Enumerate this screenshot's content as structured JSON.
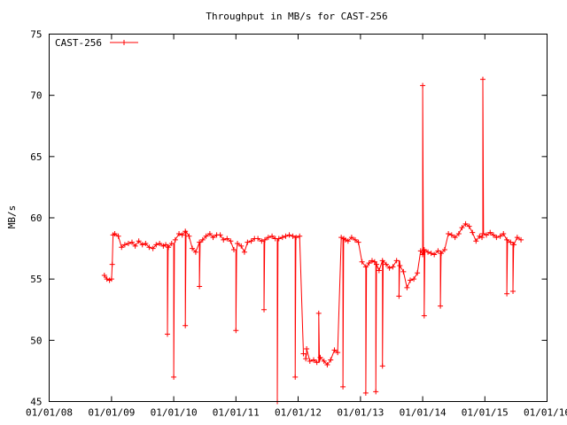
{
  "chart_data": {
    "type": "line",
    "title": "Throughput in MB/s for CAST-256",
    "xlabel": "",
    "ylabel": "MB/s",
    "ylim": [
      45,
      75
    ],
    "xlim": [
      "2008-01-01",
      "2016-01-01"
    ],
    "yticks": [
      "45",
      "50",
      "55",
      "60",
      "65",
      "70",
      "75"
    ],
    "xticks": [
      "01/01/08",
      "01/01/09",
      "01/01/10",
      "01/01/11",
      "01/01/12",
      "01/01/13",
      "01/01/14",
      "01/01/15",
      "01/01/16"
    ],
    "grid": false,
    "legend": "top-left",
    "series": [
      {
        "name": "CAST-256",
        "color": "#ff0000",
        "marker": "plus",
        "x": [
          "2008-11-20",
          "2008-12-05",
          "2008-12-20",
          "2009-01-01",
          "2009-01-05",
          "2009-01-10",
          "2009-01-20",
          "2009-02-10",
          "2009-03-01",
          "2009-03-20",
          "2009-04-10",
          "2009-05-01",
          "2009-05-20",
          "2009-06-10",
          "2009-07-01",
          "2009-07-20",
          "2009-08-10",
          "2009-09-01",
          "2009-09-20",
          "2009-10-10",
          "2009-11-01",
          "2009-11-15",
          "2009-12-01",
          "2009-12-20",
          "2010-01-10",
          "2010-02-01",
          "2010-02-20",
          "2010-03-10",
          "2010-04-01",
          "2010-04-20",
          "2010-05-10",
          "2010-06-01",
          "2010-06-20",
          "2010-07-10",
          "2010-08-01",
          "2010-08-20",
          "2010-09-10",
          "2010-10-01",
          "2010-10-20",
          "2010-11-10",
          "2010-12-01",
          "2010-12-20",
          "2011-01-10",
          "2011-02-01",
          "2011-02-20",
          "2011-03-10",
          "2011-04-01",
          "2011-04-20",
          "2011-05-10",
          "2011-06-01",
          "2011-06-20",
          "2011-07-10",
          "2011-08-01",
          "2011-08-20",
          "2011-09-10",
          "2011-10-01",
          "2011-10-20",
          "2011-11-10",
          "2011-12-01",
          "2011-12-20",
          "2012-01-10",
          "2012-02-01",
          "2012-02-20",
          "2012-03-10",
          "2012-04-01",
          "2012-04-20",
          "2012-05-10",
          "2012-06-01",
          "2012-06-20",
          "2012-07-10",
          "2012-08-01",
          "2012-08-20",
          "2012-09-10",
          "2012-09-25",
          "2012-10-05",
          "2012-10-20",
          "2012-11-10",
          "2012-12-01",
          "2012-12-20",
          "2013-01-10",
          "2013-02-01",
          "2013-02-20",
          "2013-03-10",
          "2013-03-25",
          "2013-04-05",
          "2013-04-20",
          "2013-05-10",
          "2013-06-01",
          "2013-06-20",
          "2013-07-10",
          "2013-08-01",
          "2013-08-20",
          "2013-09-10",
          "2013-10-01",
          "2013-10-20",
          "2013-11-10",
          "2013-12-01",
          "2013-12-20",
          "2014-01-01",
          "2014-01-10",
          "2014-02-01",
          "2014-02-20",
          "2014-03-10",
          "2014-04-01",
          "2014-04-20",
          "2014-05-10",
          "2014-06-01",
          "2014-06-20",
          "2014-07-10",
          "2014-08-01",
          "2014-08-20",
          "2014-09-10",
          "2014-10-01",
          "2014-10-20",
          "2014-11-10",
          "2014-12-01",
          "2014-12-15",
          "2014-12-20",
          "2015-01-10",
          "2015-02-01",
          "2015-02-20",
          "2015-03-10",
          "2015-04-01",
          "2015-04-20",
          "2015-05-10",
          "2015-06-01",
          "2015-06-20",
          "2015-07-10",
          "2015-08-01"
        ],
        "y": [
          55.3,
          55.0,
          54.9,
          55.0,
          56.2,
          58.6,
          58.7,
          58.5,
          57.6,
          57.8,
          57.9,
          58.0,
          57.7,
          58.1,
          57.8,
          57.9,
          57.6,
          57.5,
          57.8,
          57.9,
          57.7,
          57.8,
          57.6,
          57.9,
          58.2,
          58.7,
          58.6,
          58.9,
          58.5,
          57.5,
          57.2,
          58.0,
          58.2,
          58.5,
          58.7,
          58.4,
          58.6,
          58.6,
          58.2,
          58.3,
          58.1,
          57.4,
          57.9,
          57.7,
          57.2,
          58.0,
          58.1,
          58.3,
          58.3,
          58.1,
          58.2,
          58.4,
          58.5,
          58.3,
          58.3,
          58.4,
          58.5,
          58.6,
          58.5,
          58.4,
          58.5,
          48.9,
          49.3,
          48.3,
          48.4,
          48.2,
          48.6,
          48.3,
          48.0,
          48.4,
          49.2,
          49.0,
          58.4,
          58.3,
          58.2,
          58.1,
          58.4,
          58.2,
          58.0,
          56.4,
          56.0,
          56.3,
          56.5,
          56.4,
          56.2,
          55.7,
          56.5,
          56.2,
          55.9,
          56.0,
          56.5,
          56.1,
          55.6,
          54.3,
          54.9,
          55.0,
          55.5,
          57.3,
          57.0,
          57.4,
          57.2,
          57.1,
          57.0,
          57.3,
          57.1,
          57.4,
          58.7,
          58.6,
          58.4,
          58.7,
          59.2,
          59.5,
          59.3,
          58.8,
          58.1,
          58.5,
          58.4,
          58.7,
          58.6,
          58.8,
          58.6,
          58.4,
          58.5,
          58.7,
          58.2,
          58.0,
          57.8,
          58.4,
          58.2
        ]
      }
    ],
    "spikes": [
      {
        "x": "2009-11-25",
        "y": 50.5
      },
      {
        "x": "2010-01-01",
        "y": 47.0
      },
      {
        "x": "2010-03-10",
        "y": 51.2
      },
      {
        "x": "2010-06-01",
        "y": 54.4
      },
      {
        "x": "2011-01-01",
        "y": 50.8
      },
      {
        "x": "2011-06-15",
        "y": 52.5
      },
      {
        "x": "2011-09-01",
        "y": 45.0
      },
      {
        "x": "2011-12-15",
        "y": 47.0
      },
      {
        "x": "2012-02-15",
        "y": 48.5
      },
      {
        "x": "2012-05-01",
        "y": 52.2
      },
      {
        "x": "2012-09-20",
        "y": 46.2
      },
      {
        "x": "2013-02-01",
        "y": 45.7
      },
      {
        "x": "2013-04-01",
        "y": 45.8
      },
      {
        "x": "2013-05-10",
        "y": 47.9
      },
      {
        "x": "2013-08-15",
        "y": 53.6
      },
      {
        "x": "2014-01-01",
        "y": 70.8
      },
      {
        "x": "2014-01-10",
        "y": 52.0
      },
      {
        "x": "2014-04-15",
        "y": 52.8
      },
      {
        "x": "2014-12-20",
        "y": 71.3
      },
      {
        "x": "2015-05-10",
        "y": 53.8
      },
      {
        "x": "2015-06-15",
        "y": 54.0
      }
    ]
  }
}
